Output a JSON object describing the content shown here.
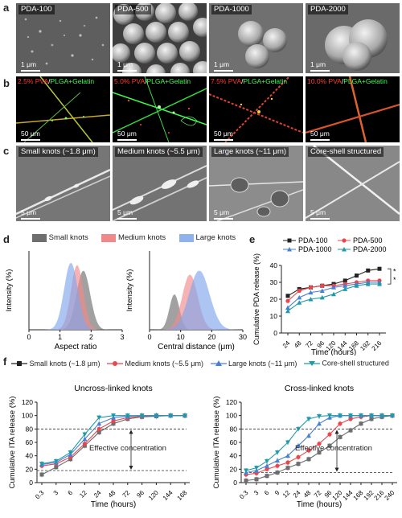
{
  "panel_a": {
    "letter": "a",
    "tiles": [
      {
        "label": "PDA-100",
        "scale": "1 μm"
      },
      {
        "label": "PDA-500",
        "scale": "1 μm"
      },
      {
        "label": "PDA-1000",
        "scale": "1 μm"
      },
      {
        "label": "PDA-2000",
        "scale": "1 μm"
      }
    ]
  },
  "panel_b": {
    "letter": "b",
    "tiles": [
      {
        "pva": "2.5% PVA",
        "rest": "PLGA+Gelatin",
        "scale": "50 μm"
      },
      {
        "pva": "5.0% PVA",
        "rest": "PLGA+Gelatin",
        "scale": "50 μm"
      },
      {
        "pva": "7.5% PVA",
        "rest": "PLGA+Gelatin",
        "scale": "50 μm"
      },
      {
        "pva": "10.0% PVA",
        "rest": "PLGA+Gelatin",
        "scale": "50 μm"
      }
    ],
    "slash": "/"
  },
  "panel_c": {
    "letter": "c",
    "tiles": [
      {
        "label": "Small knots (~1.8 μm)",
        "scale": "5 μm"
      },
      {
        "label": "Medium knots (~5.5 μm)",
        "scale": "5 μm"
      },
      {
        "label": "Large knots (~11 μm)",
        "scale": "5 μm"
      },
      {
        "label": "Core-shell structured",
        "scale": "5 μm"
      }
    ]
  },
  "panel_d": {
    "letter": "d",
    "legend": [
      "Small knots",
      "Medium knots",
      "Large knots"
    ]
  },
  "panel_e": {
    "letter": "e"
  },
  "panel_f": {
    "letter": "f",
    "legend": [
      "Small knots (~1.8 μm)",
      "Medium knots (~5.5 μm)",
      "Large knots (~11 μm)",
      "Core-shell structured"
    ]
  },
  "colors": {
    "small": "#6e6e6e",
    "medium": "#e8474d",
    "large": "#4a7fd6",
    "core": "#1f9aa6",
    "pda100": "#222222",
    "pda500": "#e8474d",
    "pda1000": "#4a7fd6",
    "pda2000": "#1f9aa6"
  },
  "chart_data": [
    {
      "id": "d-left",
      "type": "area",
      "xlabel": "Aspect ratio",
      "ylabel": "Intensity (%)",
      "xlim": [
        0,
        3
      ],
      "xticks": [
        0,
        1,
        2,
        3
      ],
      "series": [
        {
          "name": "Small knots",
          "mean": 1.75,
          "sd": 0.22,
          "peak": 75
        },
        {
          "name": "Medium knots",
          "mean": 1.55,
          "sd": 0.2,
          "peak": 82
        },
        {
          "name": "Large knots",
          "mean": 1.35,
          "sd": 0.22,
          "peak": 85
        }
      ]
    },
    {
      "id": "d-right",
      "type": "area",
      "xlabel": "Central distance (μm)",
      "ylabel": "Intensity (%)",
      "xlim": [
        0,
        30
      ],
      "xticks": [
        0,
        10,
        20,
        30
      ],
      "series": [
        {
          "name": "Small knots",
          "mean": 8,
          "sd": 1.6,
          "peak": 45
        },
        {
          "name": "Medium knots",
          "mean": 13,
          "sd": 2.5,
          "peak": 70
        },
        {
          "name": "Large knots",
          "mean": 16,
          "sd": 3.3,
          "peak": 75
        }
      ]
    },
    {
      "id": "e",
      "type": "line",
      "xlabel": "Time (hours)",
      "ylabel": "Cumulative PDA release (%)",
      "x": [
        24,
        48,
        72,
        96,
        120,
        144,
        168,
        192,
        216
      ],
      "ylim": [
        0,
        40
      ],
      "yticks": [
        0,
        10,
        20,
        30,
        40
      ],
      "series": [
        {
          "name": "PDA-100",
          "values": [
            22,
            26,
            27,
            28,
            29,
            31,
            34,
            37,
            38
          ]
        },
        {
          "name": "PDA-500",
          "values": [
            19,
            25,
            27,
            28,
            28,
            29,
            30,
            31,
            31
          ]
        },
        {
          "name": "PDA-1000",
          "values": [
            15,
            21,
            24,
            25,
            27,
            28,
            29,
            30,
            30
          ]
        },
        {
          "name": "PDA-2000",
          "values": [
            13,
            18,
            20,
            21,
            23,
            26,
            28,
            29,
            29
          ]
        }
      ],
      "significance": [
        "*",
        "*"
      ]
    },
    {
      "id": "f-left",
      "type": "line",
      "title": "Uncross-linked knots",
      "xlabel": "Time (hours)",
      "ylabel": "Cumulative ITA release (%)",
      "x": [
        "0.3",
        "3",
        "6",
        "12",
        "24",
        "48",
        "72",
        "96",
        "120",
        "144",
        "168"
      ],
      "ylim": [
        0,
        120
      ],
      "yticks": [
        0,
        20,
        40,
        60,
        80,
        100,
        120
      ],
      "series": [
        {
          "name": "Small knots (~1.8 μm)",
          "values": [
            12,
            23,
            35,
            55,
            75,
            88,
            95,
            98,
            99,
            100,
            100
          ]
        },
        {
          "name": "Medium knots (~5.5 μm)",
          "values": [
            25,
            28,
            38,
            58,
            80,
            92,
            97,
            99,
            100,
            100,
            100
          ]
        },
        {
          "name": "Large knots (~11 μm)",
          "values": [
            27,
            30,
            42,
            65,
            88,
            97,
            99,
            100,
            100,
            100,
            100
          ]
        },
        {
          "name": "Core-shell structured",
          "values": [
            28,
            32,
            45,
            72,
            97,
            100,
            100,
            100,
            100,
            100,
            100
          ]
        }
      ],
      "hlines": [
        80,
        18
      ],
      "annotation": "Effective concentration"
    },
    {
      "id": "f-right",
      "type": "line",
      "title": "Cross-linked knots",
      "xlabel": "Time (hours)",
      "ylabel": "Cumulative ITA release (%)",
      "x": [
        "0.3",
        "3",
        "6",
        "9",
        "12",
        "24",
        "48",
        "72",
        "96",
        "120",
        "144",
        "168",
        "192",
        "216",
        "240"
      ],
      "ylim": [
        0,
        120
      ],
      "yticks": [
        0,
        20,
        40,
        60,
        80,
        100,
        120
      ],
      "series": [
        {
          "name": "Small knots (~1.8 μm)",
          "values": [
            3,
            5,
            10,
            15,
            22,
            28,
            35,
            45,
            55,
            68,
            78,
            88,
            95,
            98,
            100
          ]
        },
        {
          "name": "Medium knots (~5.5 μm)",
          "values": [
            12,
            14,
            20,
            25,
            30,
            38,
            48,
            58,
            72,
            88,
            95,
            98,
            100,
            100,
            100
          ]
        },
        {
          "name": "Large knots (~11 μm)",
          "values": [
            15,
            18,
            25,
            33,
            40,
            55,
            70,
            88,
            97,
            100,
            100,
            100,
            100,
            100,
            100
          ]
        },
        {
          "name": "Core-shell structured",
          "values": [
            18,
            22,
            32,
            45,
            60,
            80,
            95,
            99,
            100,
            100,
            100,
            100,
            100,
            100,
            100
          ]
        }
      ],
      "hlines": [
        80,
        15
      ],
      "annotation": "Effective concentration"
    }
  ]
}
